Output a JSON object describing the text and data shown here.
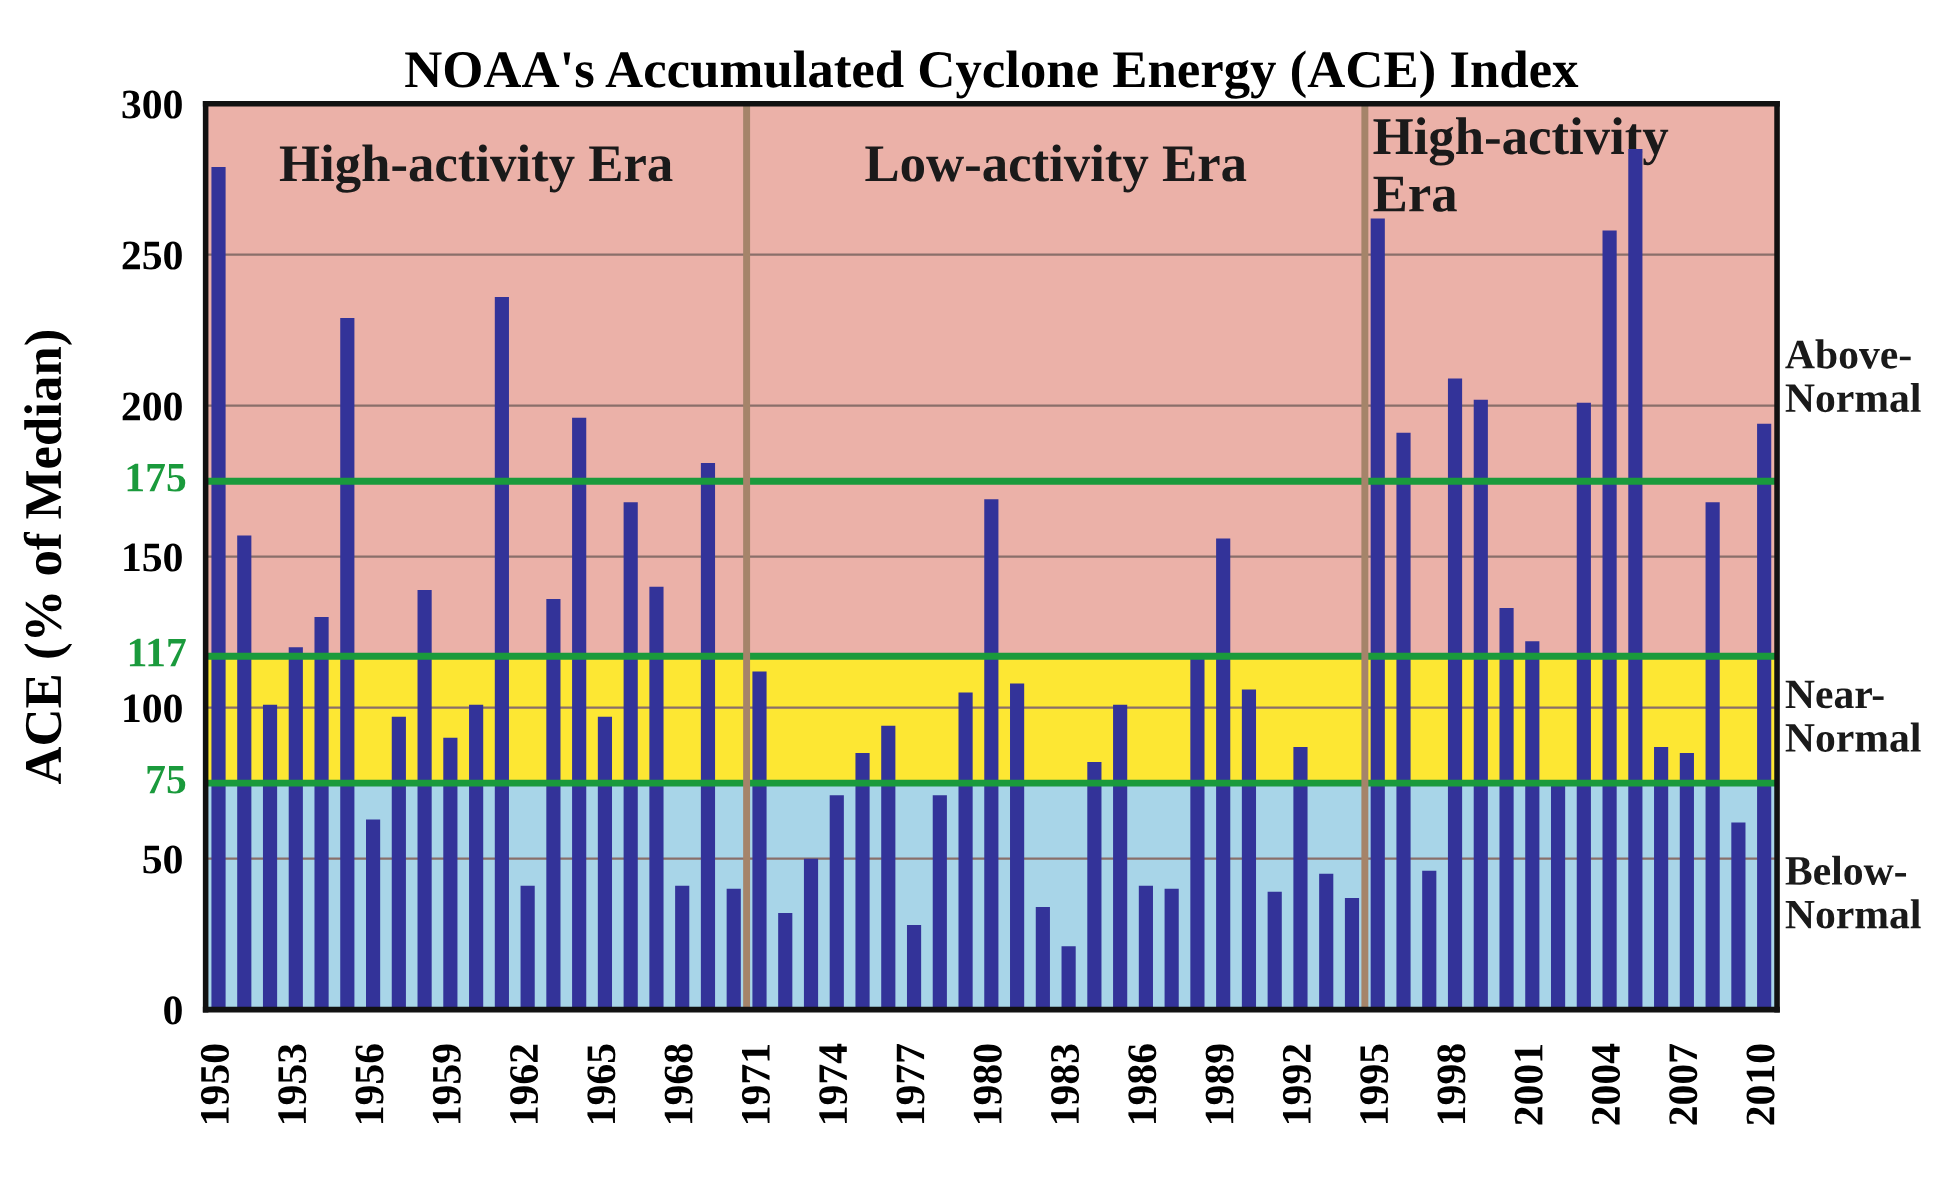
{
  "chart_data": {
    "type": "bar",
    "title": "NOAA's Accumulated Cyclone Energy (ACE) Index",
    "ylabel": "ACE (% of Median)",
    "x": [
      1950,
      1951,
      1952,
      1953,
      1954,
      1955,
      1956,
      1957,
      1958,
      1959,
      1960,
      1961,
      1962,
      1963,
      1964,
      1965,
      1966,
      1967,
      1968,
      1969,
      1970,
      1971,
      1972,
      1973,
      1974,
      1975,
      1976,
      1977,
      1978,
      1979,
      1980,
      1981,
      1982,
      1983,
      1984,
      1985,
      1986,
      1987,
      1988,
      1989,
      1990,
      1991,
      1992,
      1993,
      1994,
      1995,
      1996,
      1997,
      1998,
      1999,
      2000,
      2001,
      2002,
      2003,
      2004,
      2005,
      2006,
      2007,
      2008,
      2009,
      2010
    ],
    "xlim": [
      1949.5,
      2010.5
    ],
    "xticks": [
      1950,
      1953,
      1956,
      1959,
      1962,
      1965,
      1968,
      1971,
      1974,
      1977,
      1980,
      1983,
      1986,
      1989,
      1992,
      1995,
      1998,
      2001,
      2004,
      2007,
      2010
    ],
    "series": [
      {
        "color": "#333399",
        "values": [
          279,
          157,
          101,
          120,
          130,
          229,
          63,
          97,
          139,
          90,
          101,
          236,
          41,
          136,
          196,
          97,
          168,
          140,
          41,
          181,
          40,
          112,
          32,
          50,
          71,
          85,
          94,
          28,
          71,
          105,
          169,
          108,
          34,
          21,
          82,
          101,
          41,
          40,
          118,
          156,
          106,
          39,
          87,
          45,
          37,
          262,
          191,
          46,
          209,
          202,
          133,
          122,
          76,
          201,
          258,
          285,
          87,
          85,
          168,
          62,
          194
        ]
      }
    ],
    "ylim": [
      0,
      300
    ],
    "yticks": [
      0,
      50,
      100,
      150,
      200,
      250,
      300
    ],
    "grid": "y",
    "bands": [
      {
        "axis": "y",
        "from": 0,
        "to": 75,
        "label": "Below-\nNormal",
        "color": "#a8d5e8"
      },
      {
        "axis": "y",
        "from": 75,
        "to": 117,
        "label": "Near-\nNormal",
        "color": "#fde733"
      },
      {
        "axis": "y",
        "from": 117,
        "to": 300,
        "label": "Above-\nNormal",
        "color": "#ebb1a8"
      }
    ],
    "ref_lines": [
      {
        "axis": "y",
        "value": 75,
        "label": "75",
        "color": "#1a9a3c"
      },
      {
        "axis": "y",
        "value": 117,
        "label": "117",
        "color": "#1a9a3c"
      },
      {
        "axis": "y",
        "value": 175,
        "label": "175",
        "color": "#1a9a3c"
      },
      {
        "axis": "x",
        "value": 1970.5,
        "color": "#a5846a"
      },
      {
        "axis": "x",
        "value": 1994.5,
        "color": "#a5846a"
      }
    ],
    "annotations": [
      "High-activity Era",
      "Low-activity Era",
      "High-activity\nEra"
    ]
  }
}
